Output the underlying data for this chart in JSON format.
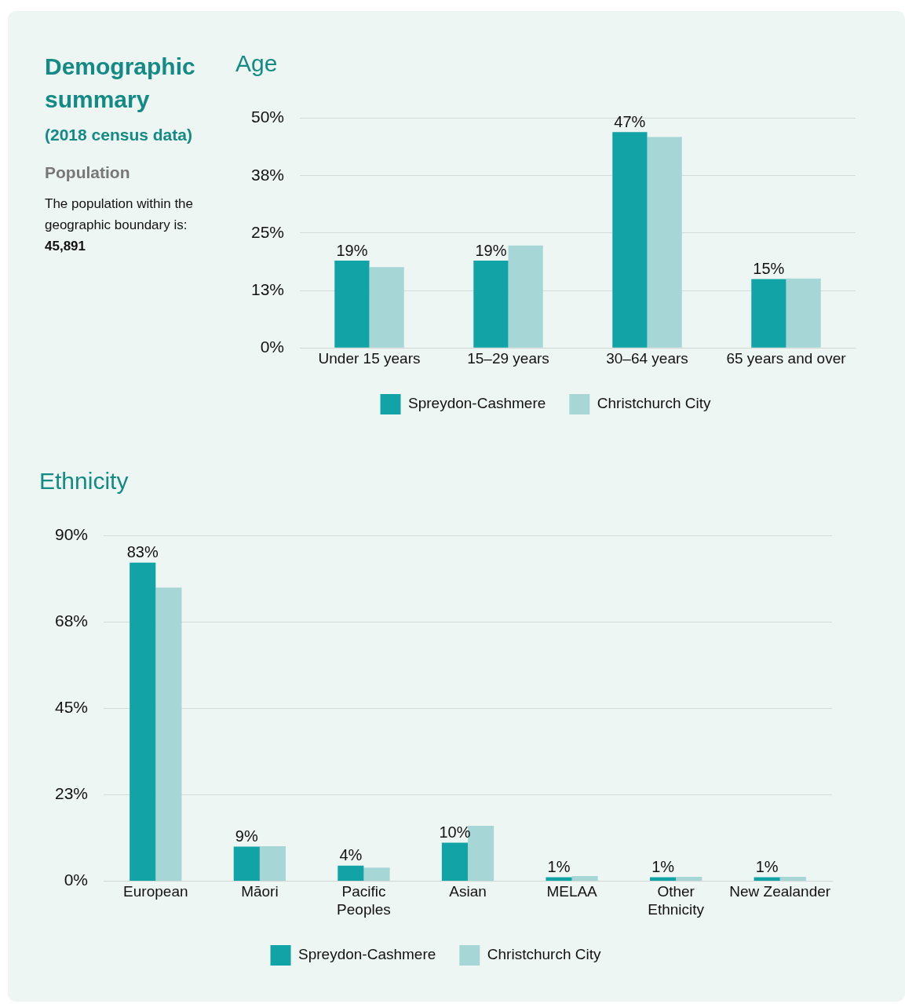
{
  "chart_data": [
    {
      "type": "other",
      "title": "Demographic summary",
      "subtitle": "(2018 census data)",
      "annotations": [
        "Population",
        "The population within the geographic boundary is:",
        "45,891"
      ]
    },
    {
      "type": "bar",
      "title": "Age",
      "categories": [
        "Under 15 years",
        "15–29 years",
        "30–64 years",
        "65 years and over"
      ],
      "series": [
        {
          "name": "Spreydon-Cashmere",
          "color": "#11a3a6",
          "values": [
            19,
            19,
            47,
            15
          ],
          "value_labels": [
            "19%",
            "19%",
            "47%",
            "15%"
          ]
        },
        {
          "name": "Christchurch City",
          "color": "#a6d7d6",
          "values": [
            17.6,
            22.3,
            45.9,
            15.1
          ]
        }
      ],
      "ylim": [
        0,
        50
      ],
      "yticks": [
        {
          "value": 0,
          "label": "0%"
        },
        {
          "value": 12.5,
          "label": "13%"
        },
        {
          "value": 25,
          "label": "25%"
        },
        {
          "value": 37.5,
          "label": "38%"
        },
        {
          "value": 50,
          "label": "50%"
        }
      ],
      "grid": "y",
      "legend": "bottom"
    },
    {
      "type": "bar",
      "title": "Ethnicity",
      "categories": [
        "European",
        "Māori",
        "Pacific Peoples",
        "Asian",
        "MELAA",
        "Other Ethnicity",
        "New Zealander"
      ],
      "series": [
        {
          "name": "Spreydon-Cashmere",
          "color": "#11a3a6",
          "values": [
            83,
            9,
            4,
            10,
            1,
            1,
            1
          ],
          "value_labels": [
            "83%",
            "9%",
            "4%",
            "10%",
            "1%",
            "1%",
            "1%"
          ]
        },
        {
          "name": "Christchurch City",
          "color": "#a6d7d6",
          "values": [
            76.5,
            9.1,
            3.5,
            14.4,
            1.3,
            1.1,
            1.1
          ]
        }
      ],
      "ylim": [
        0,
        90
      ],
      "yticks": [
        {
          "value": 0,
          "label": "0%"
        },
        {
          "value": 22.5,
          "label": "23%"
        },
        {
          "value": 45,
          "label": "45%"
        },
        {
          "value": 67.5,
          "label": "68%"
        },
        {
          "value": 90,
          "label": "90%"
        }
      ],
      "grid": "y",
      "legend": "bottom"
    }
  ]
}
